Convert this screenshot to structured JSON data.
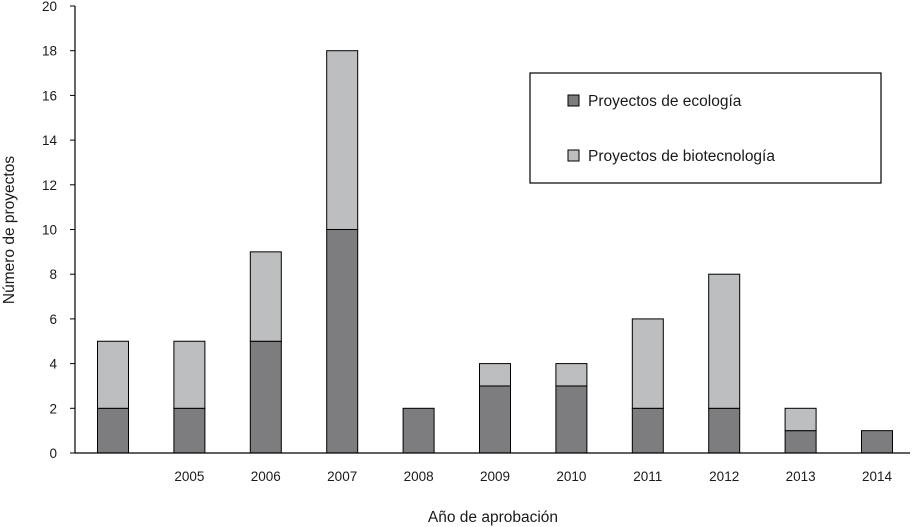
{
  "chart_data": {
    "type": "bar",
    "stacked": true,
    "categories": [
      "",
      "2005",
      "2006",
      "2007",
      "2008",
      "2009",
      "2010",
      "2011",
      "2012",
      "2013",
      "2014"
    ],
    "series": [
      {
        "name": "Proyectos de ecología",
        "color": "#7d7d80",
        "values": [
          2,
          2,
          5,
          10,
          2,
          3,
          3,
          2,
          2,
          1,
          1
        ]
      },
      {
        "name": "Proyectos de biotecnología",
        "color": "#bdbec0",
        "values": [
          3,
          3,
          4,
          8,
          0,
          1,
          1,
          4,
          6,
          1,
          0
        ]
      }
    ],
    "xlabel": "Año de aprobación",
    "ylabel": "Número de proyectos",
    "ylim": [
      0,
      20
    ],
    "yticks": [
      "0",
      "2",
      "4",
      "6",
      "8",
      "10",
      "12",
      "14",
      "16",
      "18",
      "20"
    ],
    "grid": false,
    "legend_position": "top-right"
  }
}
